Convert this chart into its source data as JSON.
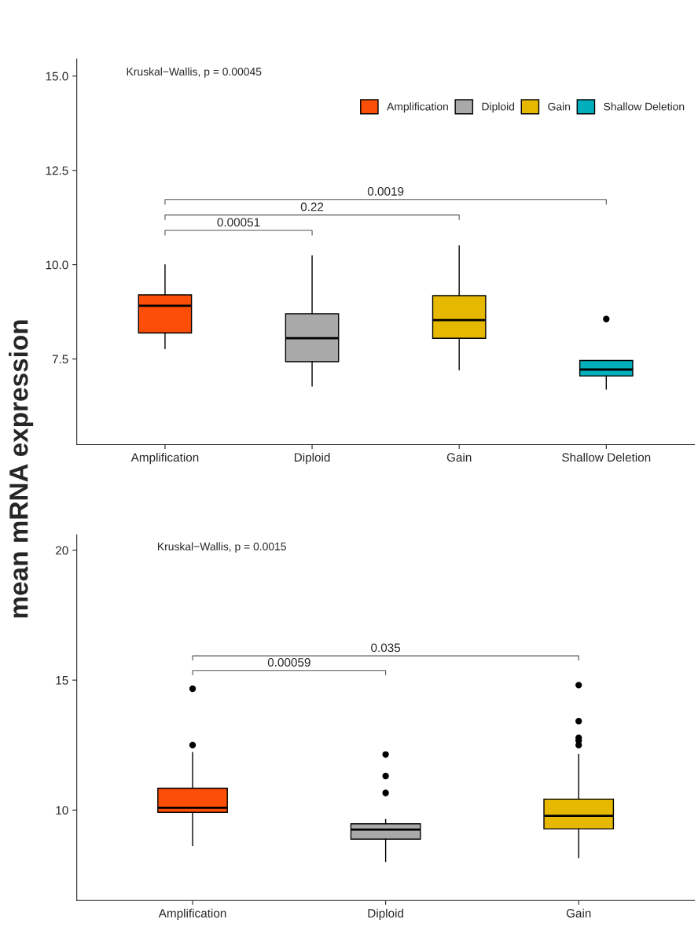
{
  "chart_data": [
    {
      "type": "box",
      "ylabel": "mean mRNA expression",
      "categories": [
        "Amplification",
        "Diploid",
        "Gain",
        "Shallow Deletion"
      ],
      "series": [
        {
          "name": "Amplification",
          "color": "#fc4e07",
          "boxes": [
            {
              "low": 7.77,
              "q1": 8.19,
              "median": 8.91,
              "q3": 9.2,
              "high": 10.0
            },
            null,
            null,
            null
          ]
        },
        {
          "name": "Diploid",
          "color": "#a9a9a9",
          "boxes": [
            null,
            {
              "low": 6.78,
              "q1": 7.43,
              "median": 8.05,
              "q3": 8.7,
              "high": 10.24
            },
            null,
            null
          ]
        },
        {
          "name": "Gain",
          "color": "#e7b800",
          "boxes": [
            null,
            null,
            {
              "low": 7.21,
              "q1": 8.05,
              "median": 8.53,
              "q3": 9.18,
              "high": 10.5
            },
            null
          ]
        },
        {
          "name": "Shallow Deletion",
          "color": "#00afbb",
          "boxes": [
            null,
            null,
            null,
            {
              "low": 6.7,
              "q1": 7.05,
              "median": 7.22,
              "q3": 7.46,
              "high": 7.46,
              "outliers": [
                8.56
              ]
            }
          ]
        }
      ],
      "ylim": [
        5.23,
        15.45
      ],
      "yticks": [
        {
          "value": 7.5,
          "label": "7.5"
        },
        {
          "value": 10,
          "label": "10.0"
        },
        {
          "value": 12.5,
          "label": "12.5"
        },
        {
          "value": 15,
          "label": "15.0"
        }
      ],
      "legend": "top right",
      "grid": false,
      "annotations": [
        "Kruskal−Wallis, p = 0.00045",
        "0.00051",
        "0.22",
        "0.0019"
      ]
    },
    {
      "type": "box",
      "categories": [
        "Amplification",
        "Diploid",
        "Gain"
      ],
      "colors": [
        "#fc4e07",
        "#a9a9a9",
        "#e7b800"
      ],
      "boxes": [
        {
          "low": 8.63,
          "q1": 9.91,
          "median": 10.09,
          "q3": 10.84,
          "high": 12.22,
          "outliers": [
            12.5,
            14.67
          ]
        },
        {
          "low": 8.02,
          "q1": 8.88,
          "median": 9.25,
          "q3": 9.47,
          "high": 9.64,
          "outliers": [
            10.66,
            11.31,
            12.14
          ]
        },
        {
          "low": 8.16,
          "q1": 9.28,
          "median": 9.78,
          "q3": 10.42,
          "high": 12.14,
          "outliers": [
            12.5,
            12.67,
            12.78,
            13.42,
            14.81
          ]
        }
      ],
      "ylim": [
        6.52,
        20.6
      ],
      "yticks": [
        10,
        15,
        20
      ],
      "grid": false,
      "annotations": [
        "Kruskal−Wallis, p = 0.0015",
        "0.00059",
        "0.035"
      ]
    }
  ]
}
